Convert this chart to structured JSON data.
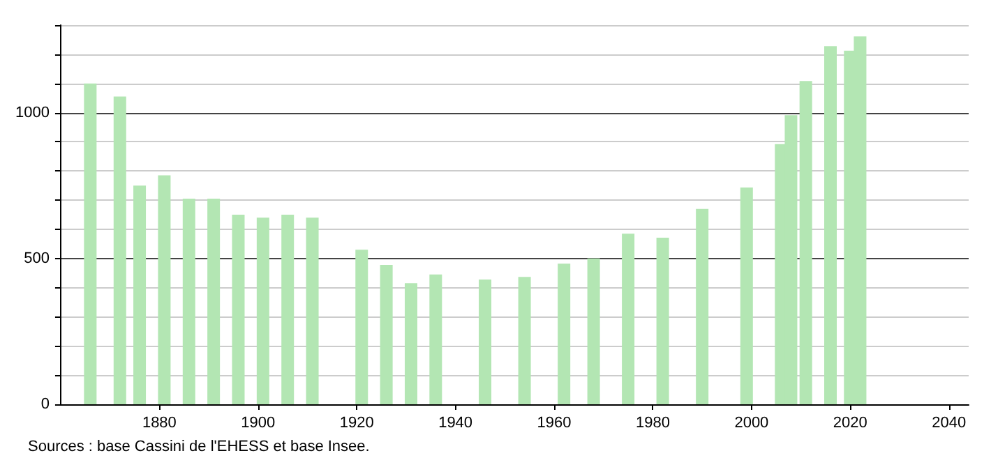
{
  "chart_data": {
    "type": "bar",
    "x": [
      1866,
      1872,
      1876,
      1881,
      1886,
      1891,
      1896,
      1901,
      1906,
      1911,
      1921,
      1926,
      1931,
      1936,
      1946,
      1954,
      1962,
      1968,
      1975,
      1982,
      1990,
      1999,
      2006,
      2008,
      2011,
      2016,
      2020,
      2022
    ],
    "series": [
      {
        "color": "#b3e6b3",
        "values": [
          1100,
          1055,
          750,
          785,
          705,
          705,
          650,
          640,
          650,
          640,
          530,
          478,
          415,
          445,
          428,
          437,
          482,
          500,
          585,
          571,
          670,
          743,
          892,
          991,
          1108,
          1228,
          1212,
          1261
        ]
      }
    ],
    "xlim": [
      1860,
      2044
    ],
    "xticks": [
      1880,
      1900,
      1920,
      1940,
      1960,
      1980,
      2000,
      2020,
      2040
    ],
    "ylim": [
      0,
      1300
    ],
    "yticks": [
      0,
      {
        "value": 100,
        "label": null
      },
      {
        "value": 200,
        "label": null
      },
      {
        "value": 300,
        "label": null
      },
      {
        "value": 400,
        "label": null
      },
      500,
      {
        "value": 600,
        "label": null
      },
      {
        "value": 700,
        "label": null
      },
      {
        "value": 800,
        "label": null
      },
      {
        "value": 900,
        "label": null
      },
      1000,
      {
        "value": 1100,
        "label": null
      },
      {
        "value": 1200,
        "label": null
      },
      {
        "value": 1300,
        "label": null
      }
    ],
    "grid": "y",
    "annotations": [
      "Sources : base Cassini de l'EHESS et base Insee."
    ]
  }
}
